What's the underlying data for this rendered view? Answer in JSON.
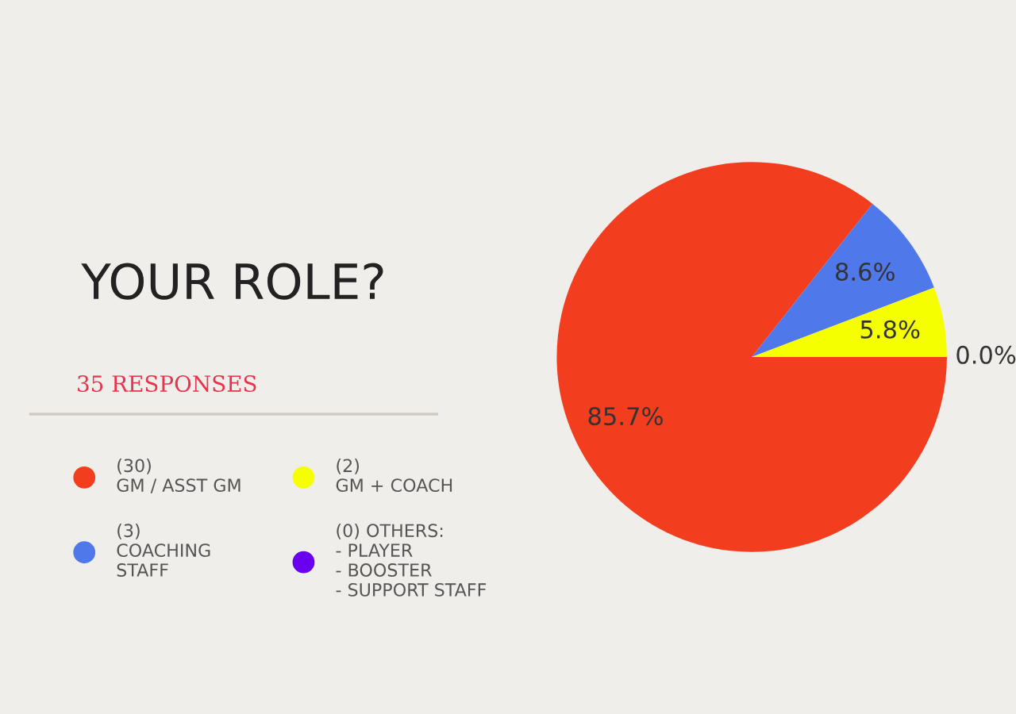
{
  "chart_data": {
    "type": "pie",
    "title": "YOUR ROLE?",
    "subtitle": "35 RESPONSES",
    "categories": [
      "(30)\nGM / ASST GM",
      "(3)\nCOACHING\nSTAFF",
      "(2)\nGM + COACH",
      "(0) OTHERS:\n- PLAYER\n- BOOSTER\n- SUPPORT STAFF"
    ],
    "values": [
      85.7,
      8.6,
      5.8,
      0.0
    ],
    "value_labels": [
      "85.7%",
      "8.6%",
      "5.8%",
      "0.0%"
    ],
    "colors": [
      "#f23e1f",
      "#4f78ea",
      "#f5ff00",
      "#6a00f0"
    ],
    "legend": "left"
  }
}
